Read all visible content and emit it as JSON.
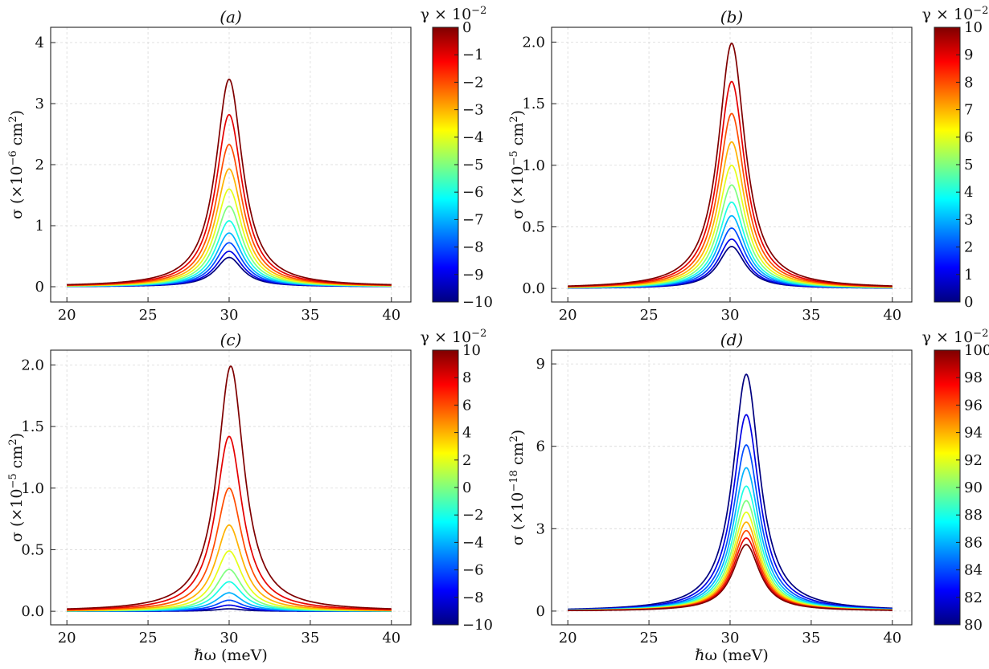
{
  "colormap": {
    "name": "jet",
    "stops": [
      "#00007f",
      "#0000ff",
      "#007fff",
      "#00ffff",
      "#7fff7f",
      "#ffff00",
      "#ff7f00",
      "#ff0000",
      "#7f0000"
    ]
  },
  "chart_data": [
    {
      "type": "line",
      "panel": "(a)",
      "title": "(a)",
      "xlabel": "",
      "ylabel": "σ (×10⁻⁶ cm²)",
      "ylabel_parts": [
        "σ (×10",
        "−6",
        " cm",
        "2",
        ")"
      ],
      "xlim": [
        19,
        41.2
      ],
      "ylim": [
        -0.25,
        4.25
      ],
      "xticks": [
        20,
        25,
        30,
        35,
        40
      ],
      "xtick_labels": [
        "20",
        "25",
        "30",
        "35",
        "40"
      ],
      "yticks": [
        0,
        1,
        2,
        3,
        4
      ],
      "ytick_labels": [
        "0",
        "1",
        "2",
        "3",
        "4"
      ],
      "show_xtick_labels": true,
      "grid": true,
      "colorbar": {
        "title": "γ × 10⁻²",
        "title_parts": [
          "γ × 10",
          "−2"
        ],
        "range": [
          -10,
          0
        ],
        "ticks": [
          -10,
          -9,
          -8,
          -7,
          -6,
          -5,
          -4,
          -3,
          -2,
          -1,
          0
        ],
        "tick_labels": [
          "−10",
          "−9",
          "−8",
          "−7",
          "−6",
          "−5",
          "−4",
          "−3",
          "−2",
          "−1",
          "0"
        ]
      },
      "series": [
        {
          "name": "γ=-10",
          "gamma": -10,
          "peak_x": 30.0,
          "peak": 0.48,
          "hwhm": 1.0
        },
        {
          "name": "γ=-9",
          "gamma": -9,
          "peak_x": 30.0,
          "peak": 0.58,
          "hwhm": 1.0
        },
        {
          "name": "γ=-8",
          "gamma": -8,
          "peak_x": 30.0,
          "peak": 0.72,
          "hwhm": 1.0
        },
        {
          "name": "γ=-7",
          "gamma": -7,
          "peak_x": 30.0,
          "peak": 0.88,
          "hwhm": 1.0
        },
        {
          "name": "γ=-6",
          "gamma": -6,
          "peak_x": 30.0,
          "peak": 1.08,
          "hwhm": 1.0
        },
        {
          "name": "γ=-5",
          "gamma": -5,
          "peak_x": 30.0,
          "peak": 1.32,
          "hwhm": 1.0
        },
        {
          "name": "γ=-4",
          "gamma": -4,
          "peak_x": 30.0,
          "peak": 1.6,
          "hwhm": 1.0
        },
        {
          "name": "γ=-3",
          "gamma": -3,
          "peak_x": 30.0,
          "peak": 1.93,
          "hwhm": 1.0
        },
        {
          "name": "γ=-2",
          "gamma": -2,
          "peak_x": 30.0,
          "peak": 2.33,
          "hwhm": 1.0
        },
        {
          "name": "γ=-1",
          "gamma": -1,
          "peak_x": 30.0,
          "peak": 2.82,
          "hwhm": 1.0
        },
        {
          "name": "γ=0",
          "gamma": 0,
          "peak_x": 30.0,
          "peak": 3.4,
          "hwhm": 1.0
        }
      ]
    },
    {
      "type": "line",
      "panel": "(b)",
      "title": "(b)",
      "xlabel": "",
      "ylabel": "σ (×10⁻⁵ cm²)",
      "ylabel_parts": [
        "σ (×10",
        "−5",
        " cm",
        "2",
        ")"
      ],
      "xlim": [
        19,
        41.2
      ],
      "ylim": [
        -0.11,
        2.12
      ],
      "xticks": [
        20,
        25,
        30,
        35,
        40
      ],
      "xtick_labels": [
        "20",
        "25",
        "30",
        "35",
        "40"
      ],
      "yticks": [
        0,
        0.5,
        1.0,
        1.5,
        2.0
      ],
      "ytick_labels": [
        "0.0",
        "0.5",
        "1.0",
        "1.5",
        "2.0"
      ],
      "show_xtick_labels": true,
      "grid": true,
      "colorbar": {
        "title": "γ × 10⁻²",
        "title_parts": [
          "γ × 10",
          "−2"
        ],
        "range": [
          0,
          10
        ],
        "ticks": [
          0,
          1,
          2,
          3,
          4,
          5,
          6,
          7,
          8,
          9,
          10
        ],
        "tick_labels": [
          "0",
          "1",
          "2",
          "3",
          "4",
          "5",
          "6",
          "7",
          "8",
          "9",
          "10"
        ]
      },
      "series": [
        {
          "name": "γ=0",
          "gamma": 0,
          "peak_x": 30.1,
          "peak": 0.34,
          "hwhm": 1.0
        },
        {
          "name": "γ=1",
          "gamma": 1,
          "peak_x": 30.1,
          "peak": 0.4,
          "hwhm": 1.0
        },
        {
          "name": "γ=2",
          "gamma": 2,
          "peak_x": 30.1,
          "peak": 0.49,
          "hwhm": 1.0
        },
        {
          "name": "γ=3",
          "gamma": 3,
          "peak_x": 30.1,
          "peak": 0.59,
          "hwhm": 1.0
        },
        {
          "name": "γ=4",
          "gamma": 4,
          "peak_x": 30.1,
          "peak": 0.7,
          "hwhm": 1.0
        },
        {
          "name": "γ=5",
          "gamma": 5,
          "peak_x": 30.1,
          "peak": 0.84,
          "hwhm": 1.0
        },
        {
          "name": "γ=6",
          "gamma": 6,
          "peak_x": 30.1,
          "peak": 1.0,
          "hwhm": 1.0
        },
        {
          "name": "γ=7",
          "gamma": 7,
          "peak_x": 30.1,
          "peak": 1.19,
          "hwhm": 1.0
        },
        {
          "name": "γ=8",
          "gamma": 8,
          "peak_x": 30.1,
          "peak": 1.42,
          "hwhm": 1.0
        },
        {
          "name": "γ=9",
          "gamma": 9,
          "peak_x": 30.1,
          "peak": 1.68,
          "hwhm": 1.0
        },
        {
          "name": "γ=10",
          "gamma": 10,
          "peak_x": 30.1,
          "peak": 1.99,
          "hwhm": 1.0
        }
      ]
    },
    {
      "type": "line",
      "panel": "(c)",
      "title": "(c)",
      "xlabel": "ℏω (meV)",
      "ylabel": "σ (×10⁻⁵ cm²)",
      "ylabel_parts": [
        "σ (×10",
        "−5",
        " cm",
        "2",
        ")"
      ],
      "xlim": [
        19,
        41.2
      ],
      "ylim": [
        -0.11,
        2.12
      ],
      "xticks": [
        20,
        25,
        30,
        35,
        40
      ],
      "xtick_labels": [
        "20",
        "25",
        "30",
        "35",
        "40"
      ],
      "yticks": [
        0,
        0.5,
        1.0,
        1.5,
        2.0
      ],
      "ytick_labels": [
        "0.0",
        "0.5",
        "1.0",
        "1.5",
        "2.0"
      ],
      "show_xtick_labels": true,
      "grid": true,
      "colorbar": {
        "title": "γ × 10⁻²",
        "title_parts": [
          "γ × 10",
          "−2"
        ],
        "range": [
          -10,
          10
        ],
        "ticks": [
          -10,
          -8,
          -6,
          -4,
          -2,
          0,
          2,
          4,
          6,
          8,
          10
        ],
        "tick_labels": [
          "−10",
          "−8",
          "−6",
          "−4",
          "−2",
          "0",
          "2",
          "4",
          "6",
          "8",
          "10"
        ]
      },
      "series": [
        {
          "name": "γ=-10",
          "gamma": -10,
          "peak_x": 30.0,
          "peak": 0.02,
          "hwhm": 1.0
        },
        {
          "name": "γ=-8",
          "gamma": -8,
          "peak_x": 30.0,
          "peak": 0.05,
          "hwhm": 1.0
        },
        {
          "name": "γ=-6",
          "gamma": -6,
          "peak_x": 30.0,
          "peak": 0.09,
          "hwhm": 1.0
        },
        {
          "name": "γ=-4",
          "gamma": -4,
          "peak_x": 30.0,
          "peak": 0.15,
          "hwhm": 1.0
        },
        {
          "name": "γ=-2",
          "gamma": -2,
          "peak_x": 30.0,
          "peak": 0.24,
          "hwhm": 1.0
        },
        {
          "name": "γ=0",
          "gamma": 0,
          "peak_x": 30.0,
          "peak": 0.34,
          "hwhm": 1.0
        },
        {
          "name": "γ=2",
          "gamma": 2,
          "peak_x": 30.0,
          "peak": 0.49,
          "hwhm": 1.0
        },
        {
          "name": "γ=4",
          "gamma": 4,
          "peak_x": 30.0,
          "peak": 0.7,
          "hwhm": 1.0
        },
        {
          "name": "γ=6",
          "gamma": 6,
          "peak_x": 30.0,
          "peak": 1.0,
          "hwhm": 1.0
        },
        {
          "name": "γ=8",
          "gamma": 8,
          "peak_x": 30.0,
          "peak": 1.42,
          "hwhm": 1.0
        },
        {
          "name": "γ=10",
          "gamma": 10,
          "peak_x": 30.1,
          "peak": 1.99,
          "hwhm": 1.0
        }
      ]
    },
    {
      "type": "line",
      "panel": "(d)",
      "title": "(d)",
      "xlabel": "ℏω (meV)",
      "ylabel": "σ (×10⁻¹⁸ cm²)",
      "ylabel_parts": [
        "σ (×10",
        "−18",
        " cm",
        "2",
        ")"
      ],
      "xlim": [
        19,
        41.2
      ],
      "ylim": [
        -0.5,
        9.5
      ],
      "xticks": [
        20,
        25,
        30,
        35,
        40
      ],
      "xtick_labels": [
        "20",
        "25",
        "30",
        "35",
        "40"
      ],
      "yticks": [
        0,
        3,
        6,
        9
      ],
      "ytick_labels": [
        "0",
        "3",
        "6",
        "9"
      ],
      "show_xtick_labels": true,
      "grid": true,
      "colorbar": {
        "title": "γ × 10⁻²",
        "title_parts": [
          "γ × 10",
          "−2"
        ],
        "range": [
          80,
          100
        ],
        "ticks": [
          80,
          82,
          84,
          86,
          88,
          90,
          92,
          94,
          96,
          98,
          100
        ],
        "tick_labels": [
          "80",
          "82",
          "84",
          "86",
          "88",
          "90",
          "92",
          "94",
          "96",
          "98",
          "100"
        ]
      },
      "series": [
        {
          "name": "γ=80",
          "gamma": 80,
          "peak_x": 31.0,
          "peak": 8.62,
          "hwhm": 1.0
        },
        {
          "name": "γ=82",
          "gamma": 82,
          "peak_x": 31.0,
          "peak": 7.15,
          "hwhm": 1.0
        },
        {
          "name": "γ=84",
          "gamma": 84,
          "peak_x": 31.0,
          "peak": 6.05,
          "hwhm": 1.0
        },
        {
          "name": "γ=86",
          "gamma": 86,
          "peak_x": 31.0,
          "peak": 5.22,
          "hwhm": 1.0
        },
        {
          "name": "γ=88",
          "gamma": 88,
          "peak_x": 31.0,
          "peak": 4.55,
          "hwhm": 1.0
        },
        {
          "name": "γ=90",
          "gamma": 90,
          "peak_x": 31.0,
          "peak": 4.02,
          "hwhm": 1.0
        },
        {
          "name": "γ=92",
          "gamma": 92,
          "peak_x": 31.0,
          "peak": 3.6,
          "hwhm": 1.0
        },
        {
          "name": "γ=94",
          "gamma": 94,
          "peak_x": 31.0,
          "peak": 3.24,
          "hwhm": 1.0
        },
        {
          "name": "γ=96",
          "gamma": 96,
          "peak_x": 31.0,
          "peak": 2.93,
          "hwhm": 1.0
        },
        {
          "name": "γ=98",
          "gamma": 98,
          "peak_x": 31.0,
          "peak": 2.66,
          "hwhm": 1.0
        },
        {
          "name": "γ=100",
          "gamma": 100,
          "peak_x": 31.0,
          "peak": 2.42,
          "hwhm": 1.0
        }
      ]
    }
  ]
}
